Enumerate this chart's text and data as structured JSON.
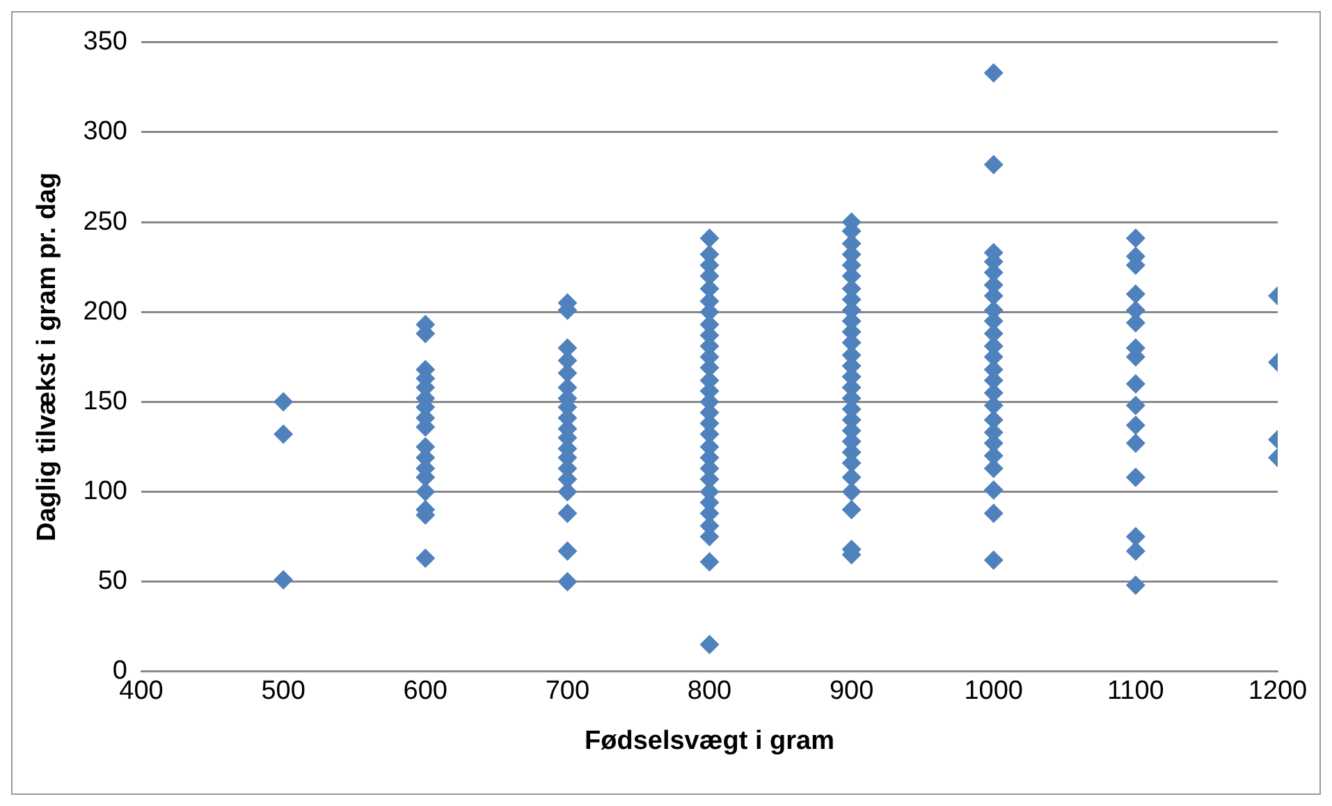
{
  "chart_data": {
    "type": "scatter",
    "xlabel": "Fødselsvægt i gram",
    "ylabel": "Daglig tilvækst i gram pr. dag",
    "xlim": [
      400,
      1200
    ],
    "xticks": [
      400,
      500,
      600,
      700,
      800,
      900,
      1000,
      1100,
      1200
    ],
    "ylim": [
      0,
      350
    ],
    "yticks": [
      0,
      50,
      100,
      150,
      200,
      250,
      300,
      350
    ],
    "grid": "y",
    "legend": false,
    "marker": "diamond",
    "series": [
      {
        "color": "#4f81bd",
        "x": [
          500,
          500,
          500,
          600,
          600,
          600,
          600,
          600,
          600,
          600,
          600,
          600,
          600,
          600,
          600,
          600,
          600,
          600,
          600,
          600,
          700,
          700,
          700,
          700,
          700,
          700,
          700,
          700,
          700,
          700,
          700,
          700,
          700,
          700,
          700,
          700,
          700,
          700,
          700,
          800,
          800,
          800,
          800,
          800,
          800,
          800,
          800,
          800,
          800,
          800,
          800,
          800,
          800,
          800,
          800,
          800,
          800,
          800,
          800,
          800,
          800,
          800,
          800,
          800,
          800,
          800,
          800,
          800,
          900,
          900,
          900,
          900,
          900,
          900,
          900,
          900,
          900,
          900,
          900,
          900,
          900,
          900,
          900,
          900,
          900,
          900,
          900,
          900,
          900,
          900,
          900,
          900,
          900,
          900,
          900,
          900,
          1000,
          1000,
          1000,
          1000,
          1000,
          1000,
          1000,
          1000,
          1000,
          1000,
          1000,
          1000,
          1000,
          1000,
          1000,
          1000,
          1000,
          1000,
          1000,
          1000,
          1000,
          1000,
          1000,
          1000,
          1100,
          1100,
          1100,
          1100,
          1100,
          1100,
          1100,
          1100,
          1100,
          1100,
          1100,
          1100,
          1100,
          1100,
          1100,
          1100,
          1200,
          1200,
          1200,
          1200
        ],
        "values": [
          150,
          132,
          51,
          193,
          188,
          168,
          163,
          158,
          152,
          147,
          141,
          136,
          125,
          119,
          113,
          108,
          100,
          90,
          87,
          63,
          205,
          201,
          180,
          173,
          166,
          158,
          152,
          147,
          141,
          135,
          130,
          124,
          119,
          113,
          107,
          100,
          88,
          67,
          50,
          241,
          232,
          226,
          220,
          213,
          206,
          200,
          193,
          187,
          181,
          175,
          169,
          162,
          156,
          150,
          144,
          138,
          132,
          125,
          119,
          113,
          107,
          100,
          94,
          88,
          81,
          75,
          61,
          15,
          250,
          245,
          238,
          232,
          226,
          220,
          213,
          207,
          201,
          195,
          189,
          183,
          176,
          170,
          164,
          158,
          152,
          146,
          140,
          134,
          128,
          122,
          116,
          108,
          100,
          90,
          68,
          65,
          333,
          282,
          233,
          228,
          222,
          215,
          209,
          201,
          195,
          188,
          181,
          175,
          168,
          162,
          155,
          148,
          140,
          133,
          127,
          120,
          113,
          101,
          88,
          62,
          241,
          231,
          226,
          210,
          201,
          194,
          180,
          175,
          160,
          148,
          137,
          127,
          108,
          75,
          67,
          48,
          209,
          172,
          129,
          119
        ]
      }
    ]
  }
}
